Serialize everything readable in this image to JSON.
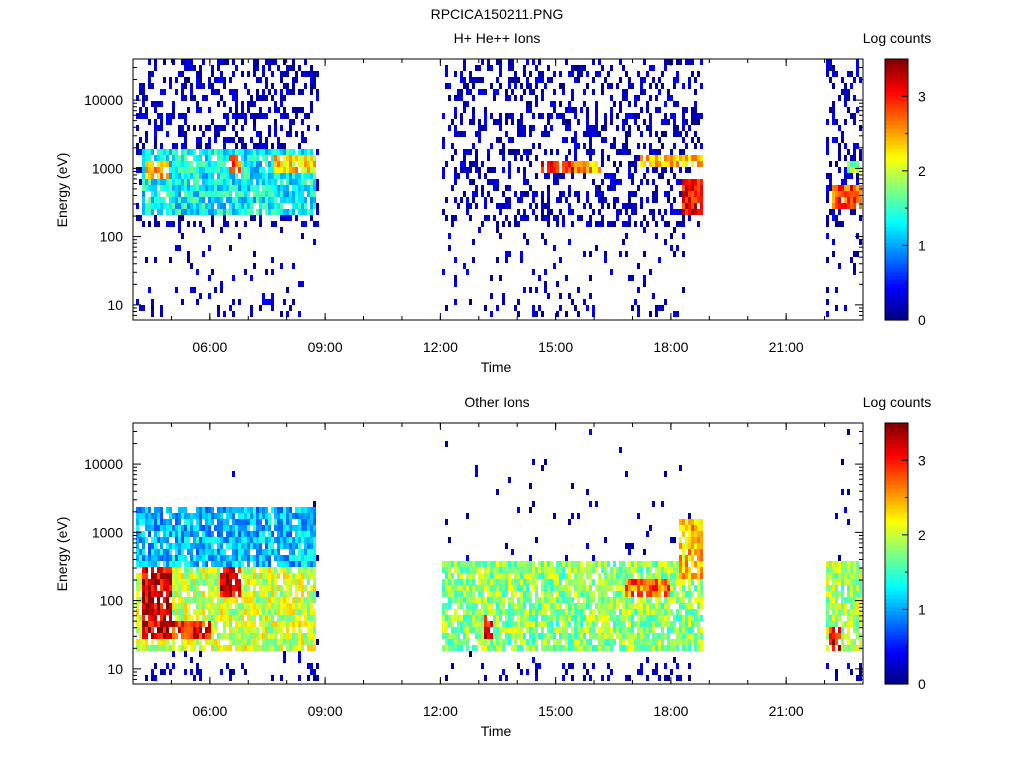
{
  "figure": {
    "title": "RPCICA150211.PNG"
  },
  "chart_data": [
    {
      "type": "heatmap",
      "title": "H+ He++ Ions",
      "xlabel": "Time",
      "ylabel": "Energy (eV)",
      "x_ticks": [
        "06:00",
        "09:00",
        "12:00",
        "15:00",
        "18:00",
        "21:00"
      ],
      "x_range_hours": [
        4.0,
        23.0
      ],
      "y_scale": "log",
      "y_ticks": [
        "10",
        "100",
        "1000",
        "10000"
      ],
      "y_range": [
        6,
        40000
      ],
      "colorbar": {
        "label": "Log counts",
        "ticks": [
          "0",
          "1",
          "2",
          "3"
        ],
        "range": [
          0,
          3.5
        ],
        "colormap": "jet"
      },
      "data_intervals_hours": [
        [
          4.05,
          8.85
        ],
        [
          12.05,
          18.85
        ],
        [
          22.05,
          23.0
        ]
      ],
      "features": [
        {
          "t": [
            4.2,
            8.8
          ],
          "e": [
            200,
            1800
          ],
          "level": 1.3
        },
        {
          "t": [
            7.7,
            8.8
          ],
          "e": [
            900,
            1500
          ],
          "level": 2.3
        },
        {
          "t": [
            4.3,
            4.9
          ],
          "e": [
            700,
            1200
          ],
          "level": 2.4
        },
        {
          "t": [
            6.5,
            6.8
          ],
          "e": [
            800,
            1500
          ],
          "level": 2.7
        },
        {
          "t": [
            14.6,
            15.5
          ],
          "e": [
            900,
            1400
          ],
          "level": 3.0
        },
        {
          "t": [
            15.5,
            16.2
          ],
          "e": [
            800,
            1200
          ],
          "level": 2.5
        },
        {
          "t": [
            17.2,
            18.8
          ],
          "e": [
            1000,
            1500
          ],
          "level": 2.4
        },
        {
          "t": [
            18.3,
            18.8
          ],
          "e": [
            200,
            700
          ],
          "level": 3.1
        },
        {
          "t": [
            22.2,
            23.0
          ],
          "e": [
            250,
            600
          ],
          "level": 2.8
        },
        {
          "t": [
            22.6,
            23.0
          ],
          "e": [
            900,
            1400
          ],
          "level": 1.8
        }
      ]
    },
    {
      "type": "heatmap",
      "title": "Other Ions",
      "xlabel": "Time",
      "ylabel": "Energy (eV)",
      "x_ticks": [
        "06:00",
        "09:00",
        "12:00",
        "15:00",
        "18:00",
        "21:00"
      ],
      "x_range_hours": [
        4.0,
        23.0
      ],
      "y_scale": "log",
      "y_ticks": [
        "10",
        "100",
        "1000",
        "10000"
      ],
      "y_range": [
        6,
        40000
      ],
      "colorbar": {
        "label": "Log counts",
        "ticks": [
          "0",
          "1",
          "2",
          "3"
        ],
        "range": [
          0,
          3.5
        ],
        "colormap": "jet"
      },
      "data_intervals_hours": [
        [
          4.05,
          8.85
        ],
        [
          12.05,
          18.85
        ],
        [
          22.05,
          23.0
        ]
      ],
      "features": [
        {
          "t": [
            4.0,
            8.8
          ],
          "e": [
            20,
            300
          ],
          "level": 2.0
        },
        {
          "t": [
            4.2,
            5.0
          ],
          "e": [
            25,
            300
          ],
          "level": 3.2
        },
        {
          "t": [
            5.0,
            6.0
          ],
          "e": [
            25,
            50
          ],
          "level": 3.0
        },
        {
          "t": [
            6.3,
            6.8
          ],
          "e": [
            120,
            300
          ],
          "level": 3.2
        },
        {
          "t": [
            4.0,
            8.8
          ],
          "e": [
            300,
            2500
          ],
          "level": 1.1
        },
        {
          "t": [
            12.0,
            18.8
          ],
          "e": [
            20,
            350
          ],
          "level": 1.8
        },
        {
          "t": [
            13.1,
            13.4
          ],
          "e": [
            30,
            60
          ],
          "level": 3.0
        },
        {
          "t": [
            16.8,
            18.0
          ],
          "e": [
            120,
            220
          ],
          "level": 2.7
        },
        {
          "t": [
            18.2,
            18.8
          ],
          "e": [
            200,
            1500
          ],
          "level": 2.4
        },
        {
          "t": [
            22.1,
            22.4
          ],
          "e": [
            20,
            40
          ],
          "level": 3.1
        },
        {
          "t": [
            22.0,
            23.0
          ],
          "e": [
            20,
            400
          ],
          "level": 1.9
        }
      ]
    }
  ]
}
